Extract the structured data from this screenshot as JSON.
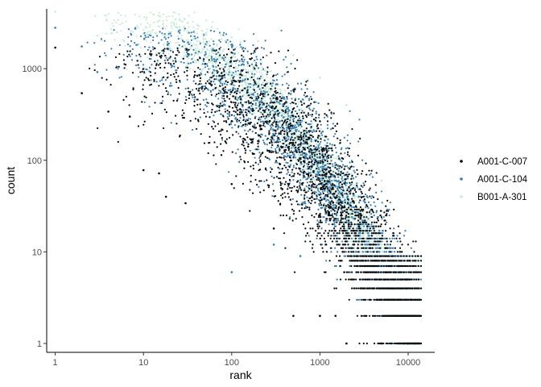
{
  "chart_data": {
    "type": "scatter",
    "xlabel": "rank",
    "ylabel": "count",
    "xscale": "log",
    "yscale": "log",
    "xlim": [
      0.8,
      20000
    ],
    "ylim": [
      0.8,
      4500
    ],
    "xticks": [
      1,
      10,
      100,
      1000,
      10000
    ],
    "xtick_labels": [
      "1",
      "10",
      "100",
      "1000",
      "10000"
    ],
    "yticks": [
      1,
      10,
      100,
      1000
    ],
    "ytick_labels": [
      "1",
      "10",
      "100",
      "1000"
    ],
    "grid": false,
    "legend": "right",
    "series": [
      {
        "name": "A001-C-007",
        "color": "#0a0a0a",
        "n_points": 14000,
        "max_count": 1700,
        "points": [
          [
            1,
            1700
          ],
          [
            2,
            540
          ],
          [
            4,
            340
          ],
          [
            7,
            300
          ],
          [
            10,
            78
          ],
          [
            15,
            72
          ],
          [
            18,
            40
          ],
          [
            30,
            34
          ],
          [
            100,
            55
          ],
          [
            300,
            18
          ],
          [
            500,
            2
          ],
          [
            1000,
            2
          ],
          [
            1500,
            2
          ],
          [
            2000,
            1
          ],
          [
            5000,
            1
          ],
          [
            10000,
            1
          ],
          [
            12000,
            1
          ]
        ]
      },
      {
        "name": "A001-C-104",
        "color": "#3a7fb0",
        "n_points": 14000,
        "max_count": 2800,
        "points": [
          [
            1,
            2800
          ],
          [
            2,
            1750
          ],
          [
            3,
            920
          ],
          [
            5,
            1050
          ],
          [
            10,
            1000
          ],
          [
            20,
            650
          ],
          [
            50,
            640
          ],
          [
            100,
            6
          ],
          [
            120,
            480
          ],
          [
            300,
            12
          ],
          [
            600,
            9
          ],
          [
            1000,
            2
          ],
          [
            2000,
            1
          ],
          [
            5000,
            1
          ],
          [
            10000,
            1
          ],
          [
            13000,
            1
          ]
        ]
      },
      {
        "name": "B001-A-301",
        "color": "#c9ecd9",
        "n_points": 13500,
        "max_count": 4200,
        "points": [
          [
            1,
            4200
          ],
          [
            3,
            2300
          ],
          [
            5,
            2500
          ],
          [
            10,
            2400
          ],
          [
            20,
            2450
          ],
          [
            50,
            2400
          ],
          [
            100,
            2200
          ],
          [
            200,
            2000
          ],
          [
            500,
            1400
          ],
          [
            1000,
            800
          ],
          [
            2000,
            400
          ],
          [
            5000,
            60
          ],
          [
            10000,
            4
          ],
          [
            12000,
            1
          ]
        ]
      }
    ]
  }
}
